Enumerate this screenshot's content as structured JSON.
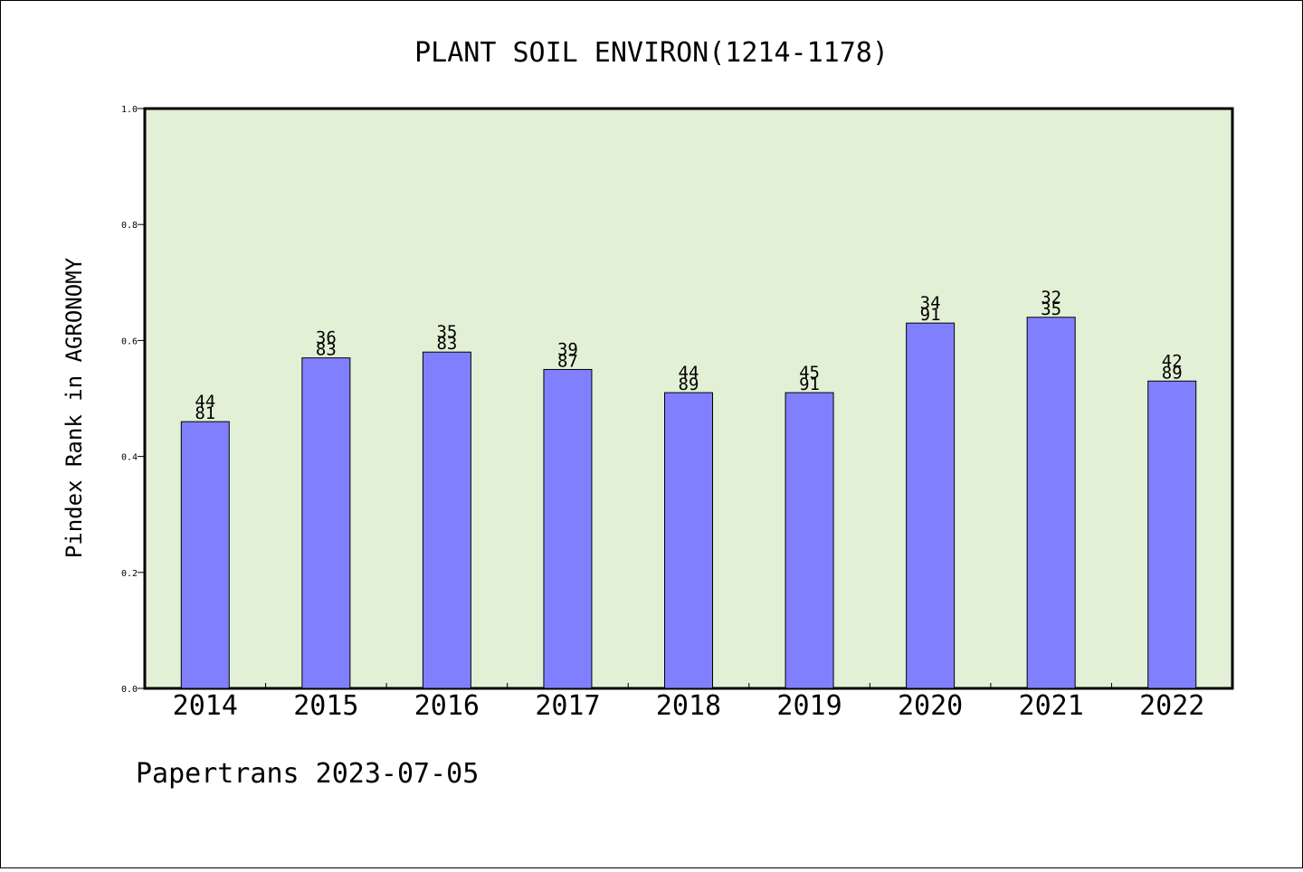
{
  "chart_data": {
    "type": "bar",
    "title": "PLANT SOIL ENVIRON(1214-1178)",
    "ylabel": "Pindex Rank in AGRONOMY",
    "xlabel": "",
    "footer": "Papertrans 2023-07-05",
    "ylim": [
      0,
      1.0
    ],
    "yticks": [
      "0.0",
      "0.2",
      "0.4",
      "0.6",
      "0.8",
      "1.0"
    ],
    "categories": [
      "2014",
      "2015",
      "2016",
      "2017",
      "2018",
      "2019",
      "2020",
      "2021",
      "2022"
    ],
    "values": [
      0.46,
      0.57,
      0.58,
      0.55,
      0.51,
      0.51,
      0.63,
      0.64,
      0.53
    ],
    "labels_top": [
      "44",
      "36",
      "35",
      "39",
      "44",
      "45",
      "34",
      "32",
      "42"
    ],
    "labels_bottom": [
      "81",
      "83",
      "83",
      "87",
      "89",
      "91",
      "91",
      "35",
      "89"
    ],
    "grid": false,
    "colors": {
      "plot_background": "#e2f0d6",
      "bar_fill": "#8080ff",
      "bar_stroke": "#000000"
    }
  }
}
